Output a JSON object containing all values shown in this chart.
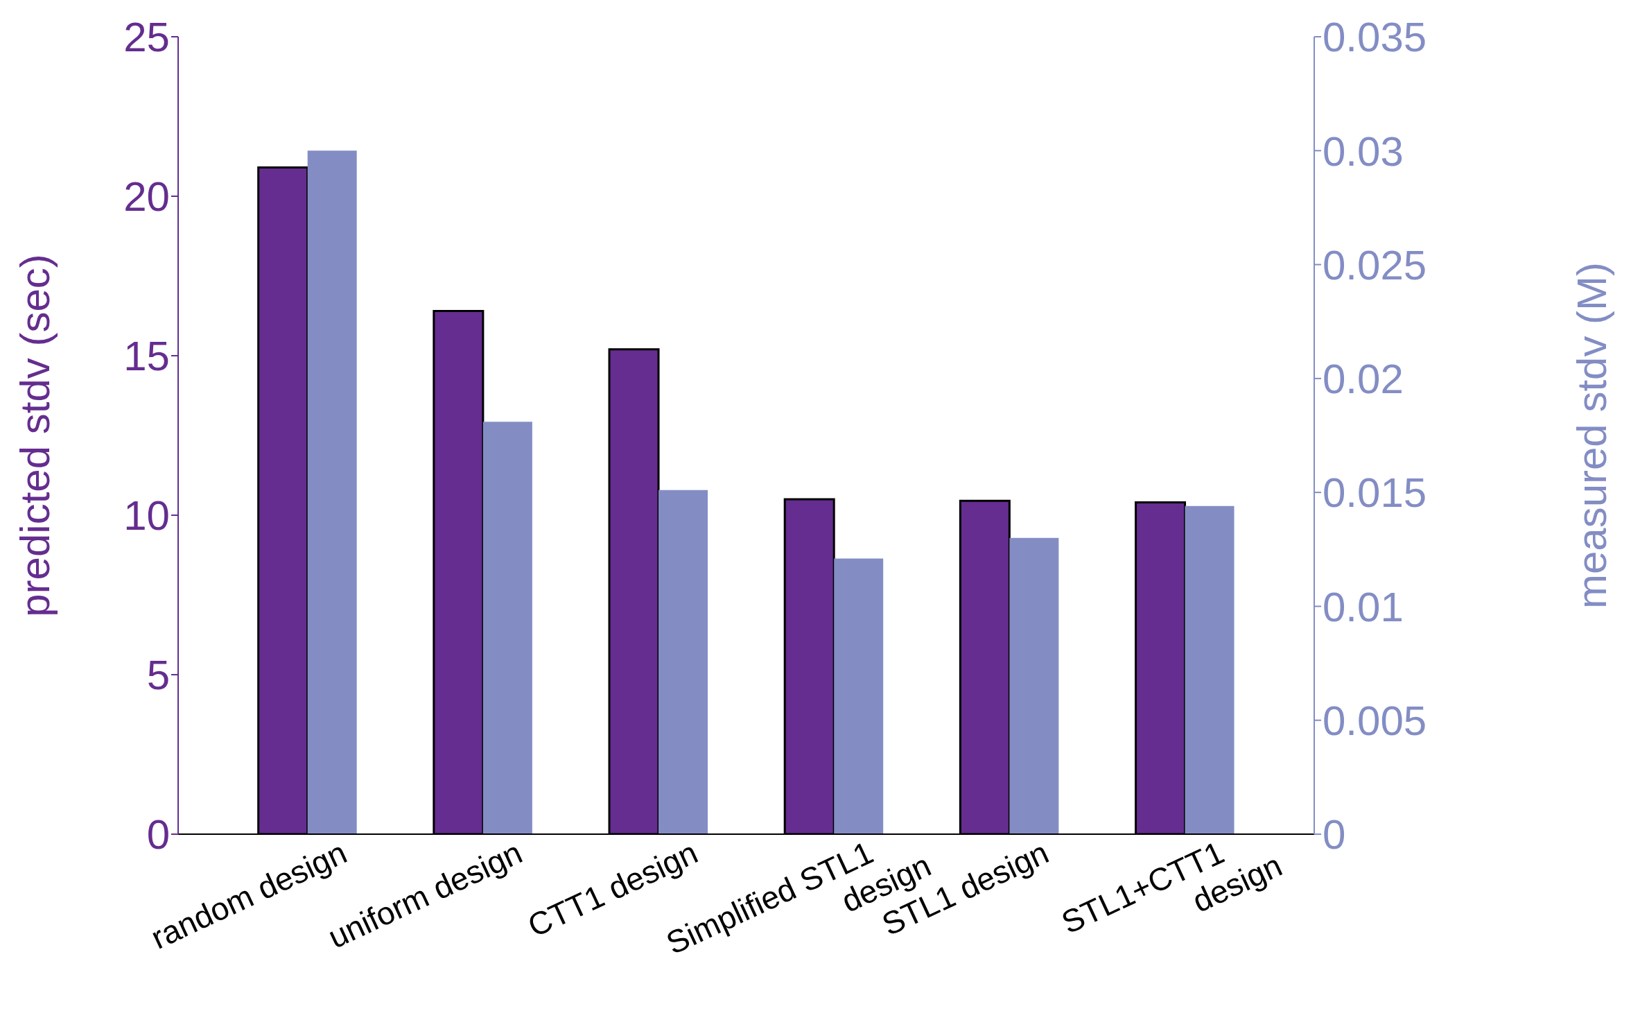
{
  "chart_data": {
    "type": "bar",
    "categories": [
      "random design",
      "uniform design",
      "CTT1 design",
      "Simplified STL1\ndesign",
      "STL1 design",
      "STL1+CTT1\ndesign"
    ],
    "series": [
      {
        "color": "#652d8f",
        "values": [
          20.9,
          16.4,
          15.2,
          10.5,
          10.45,
          10.4
        ]
      },
      {
        "color": "#838dc4",
        "axis": "y2",
        "values": [
          0.03,
          0.0181,
          0.0151,
          0.0121,
          0.013,
          0.0144
        ]
      }
    ],
    "ylabel": "predicted stdv (sec)",
    "y2label": "measured stdv (M)",
    "ylim": [
      0,
      25
    ],
    "yticks": [
      0,
      5,
      10,
      15,
      20,
      25
    ],
    "y2lim": [
      0,
      0.035
    ],
    "y2ticks": [
      0,
      0.005,
      0.01,
      0.015,
      0.02,
      0.025,
      0.03,
      0.035
    ],
    "grid": false,
    "legend": false
  }
}
